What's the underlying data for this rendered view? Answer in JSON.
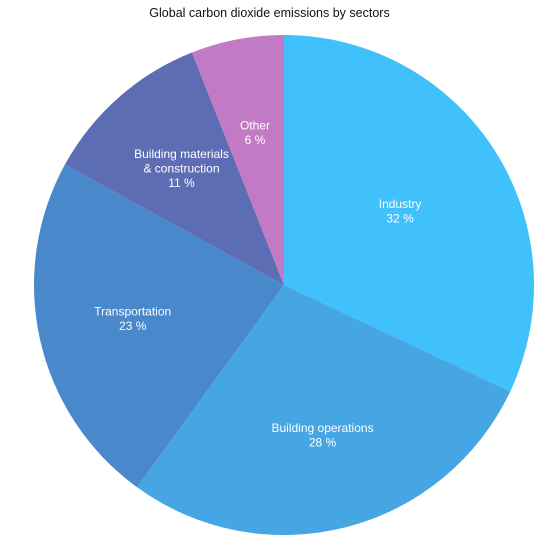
{
  "chart_data": {
    "type": "pie",
    "title": "Global carbon dioxide emissions by sectors",
    "slices": [
      {
        "label_lines": [
          "Industry"
        ],
        "value_label": "32 %",
        "value": 32,
        "color": "#40C1FB"
      },
      {
        "label_lines": [
          "Building operations"
        ],
        "value_label": "28 %",
        "value": 28,
        "color": "#45A6E3"
      },
      {
        "label_lines": [
          "Transportation"
        ],
        "value_label": "23 %",
        "value": 23,
        "color": "#4A88CC"
      },
      {
        "label_lines": [
          "Building materials",
          "& construction"
        ],
        "value_label": "11 %",
        "value": 11,
        "color": "#5D6DB4"
      },
      {
        "label_lines": [
          "Other"
        ],
        "value_label": "6 %",
        "value": 6,
        "color": "#C27AC4"
      }
    ],
    "start_angle": "12 o'clock",
    "direction": "clockwise",
    "legend": "none"
  }
}
